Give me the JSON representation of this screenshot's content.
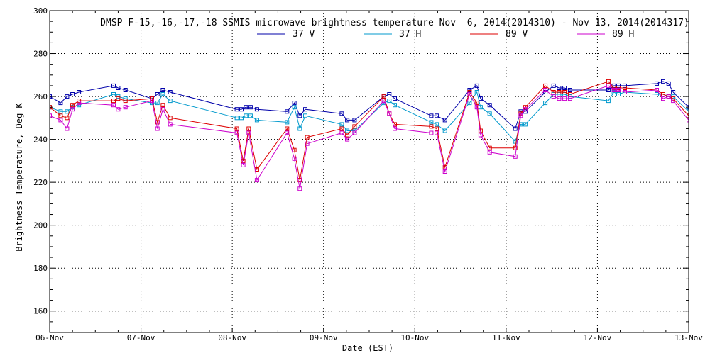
{
  "chart_data": {
    "type": "line",
    "title": "DMSP F-15,-16,-17,-18 SSMIS microwave brightness temperature Nov  6, 2014(2014310) - Nov 13, 2014(2014317)",
    "xlabel": "Date (EST)",
    "ylabel": "Brightness Temperature, Deg K",
    "xlim": [
      0,
      7
    ],
    "ylim": [
      150,
      300
    ],
    "x_unit": "days since 06-Nov 00:00 EST",
    "x_tick_values": [
      0,
      1,
      2,
      3,
      4,
      5,
      6,
      7
    ],
    "x_tick_labels": [
      "06-Nov",
      "07-Nov",
      "08-Nov",
      "09-Nov",
      "10-Nov",
      "11-Nov",
      "12-Nov",
      "13-Nov"
    ],
    "y_tick_values": [
      160,
      180,
      200,
      220,
      240,
      260,
      280,
      300
    ],
    "y_tick_labels": [
      "160",
      "180",
      "200",
      "220",
      "240",
      "260",
      "280",
      "300"
    ],
    "grid": true,
    "legend_position": "top-center",
    "series": [
      {
        "name": "37 V",
        "color": "#0000aa",
        "marker": "square",
        "x": [
          0.0,
          0.12,
          0.19,
          0.25,
          0.32,
          0.7,
          0.75,
          0.83,
          1.12,
          1.18,
          1.24,
          1.32,
          2.05,
          2.1,
          2.15,
          2.2,
          2.27,
          2.6,
          2.68,
          2.74,
          2.8,
          3.2,
          3.26,
          3.34,
          3.66,
          3.72,
          3.78,
          4.18,
          4.24,
          4.33,
          4.6,
          4.68,
          4.72,
          4.82,
          5.1,
          5.16,
          5.21,
          5.43,
          5.52,
          5.58,
          5.64,
          5.7,
          6.12,
          6.18,
          6.23,
          6.3,
          6.65,
          6.72,
          6.78,
          6.83,
          7.0
        ],
        "values": [
          260,
          257,
          260,
          261,
          262,
          265,
          264,
          263,
          259,
          261,
          263,
          262,
          254,
          254,
          255,
          255,
          254,
          253,
          257,
          251,
          254,
          252,
          249,
          249,
          260,
          261,
          259,
          251,
          251,
          249,
          263,
          265,
          259,
          256,
          245,
          253,
          253,
          262,
          265,
          264,
          264,
          263,
          263,
          265,
          265,
          265,
          266,
          267,
          266,
          262,
          255
        ]
      },
      {
        "name": "37 H",
        "color": "#0099cc",
        "marker": "square",
        "x": [
          0.0,
          0.12,
          0.19,
          0.25,
          0.32,
          0.7,
          0.75,
          0.83,
          1.12,
          1.18,
          1.24,
          1.32,
          2.05,
          2.1,
          2.15,
          2.2,
          2.27,
          2.6,
          2.68,
          2.74,
          2.8,
          3.2,
          3.26,
          3.34,
          3.66,
          3.72,
          3.78,
          4.18,
          4.24,
          4.33,
          4.6,
          4.68,
          4.72,
          4.82,
          5.1,
          5.16,
          5.21,
          5.43,
          5.52,
          5.58,
          5.64,
          5.7,
          6.12,
          6.18,
          6.23,
          6.3,
          6.65,
          6.72,
          6.78,
          6.83,
          7.0
        ],
        "values": [
          255,
          253,
          253,
          255,
          256,
          261,
          260,
          259,
          257,
          257,
          261,
          258,
          250,
          250,
          251,
          251,
          249,
          248,
          255,
          245,
          251,
          247,
          244,
          244,
          257,
          258,
          256,
          248,
          247,
          244,
          257,
          262,
          255,
          252,
          239,
          247,
          247,
          257,
          261,
          261,
          261,
          260,
          258,
          262,
          261,
          262,
          261,
          261,
          260,
          260,
          253
        ]
      },
      {
        "name": "89 V",
        "color": "#dd0000",
        "marker": "square",
        "x": [
          0.0,
          0.12,
          0.19,
          0.25,
          0.32,
          0.7,
          0.75,
          0.83,
          1.12,
          1.18,
          1.24,
          1.32,
          2.05,
          2.12,
          2.18,
          2.27,
          2.6,
          2.68,
          2.74,
          2.82,
          3.2,
          3.26,
          3.34,
          3.66,
          3.72,
          3.78,
          4.18,
          4.24,
          4.33,
          4.6,
          4.68,
          4.72,
          4.82,
          5.1,
          5.16,
          5.21,
          5.43,
          5.52,
          5.58,
          5.64,
          5.7,
          6.12,
          6.18,
          6.23,
          6.3,
          6.65,
          6.72,
          6.78,
          6.83,
          7.0
        ],
        "values": [
          255,
          251,
          250,
          256,
          258,
          258,
          259,
          258,
          259,
          248,
          256,
          250,
          245,
          230,
          245,
          226,
          245,
          235,
          221,
          241,
          245,
          242,
          246,
          260,
          252,
          247,
          246,
          245,
          227,
          262,
          257,
          244,
          236,
          236,
          252,
          255,
          265,
          262,
          262,
          262,
          261,
          267,
          264,
          264,
          264,
          263,
          261,
          260,
          259,
          251
        ]
      },
      {
        "name": "89 H",
        "color": "#cc00cc",
        "marker": "square",
        "x": [
          0.0,
          0.12,
          0.19,
          0.25,
          0.32,
          0.7,
          0.75,
          0.83,
          1.12,
          1.18,
          1.24,
          1.32,
          2.05,
          2.12,
          2.18,
          2.27,
          2.6,
          2.68,
          2.74,
          2.82,
          3.2,
          3.26,
          3.34,
          3.66,
          3.72,
          3.78,
          4.18,
          4.24,
          4.33,
          4.6,
          4.68,
          4.72,
          4.82,
          5.1,
          5.16,
          5.21,
          5.43,
          5.52,
          5.58,
          5.64,
          5.7,
          6.12,
          6.18,
          6.23,
          6.3,
          6.65,
          6.72,
          6.78,
          6.83,
          7.0
        ],
        "values": [
          251,
          249,
          245,
          254,
          257,
          256,
          254,
          255,
          258,
          245,
          254,
          247,
          243,
          228,
          243,
          221,
          243,
          231,
          217,
          238,
          243,
          240,
          243,
          258,
          252,
          245,
          243,
          243,
          225,
          261,
          255,
          242,
          234,
          232,
          251,
          254,
          263,
          260,
          259,
          259,
          259,
          265,
          263,
          263,
          262,
          263,
          259,
          260,
          258,
          249
        ]
      }
    ]
  }
}
